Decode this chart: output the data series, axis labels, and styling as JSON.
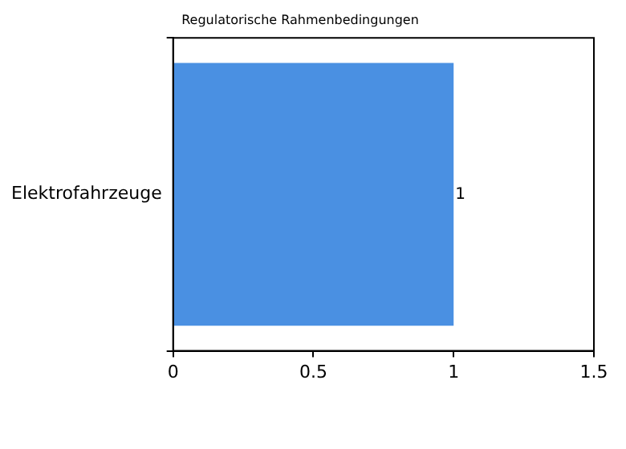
{
  "chart_data": {
    "type": "bar",
    "orientation": "horizontal",
    "title": "Regulatorische Rahmenbedingungen",
    "categories": [
      "Elektrofahrzeuge"
    ],
    "values": [
      1
    ],
    "color": "#4a90e2",
    "xlim": [
      0,
      1.5
    ],
    "xticks": [
      0,
      0.5,
      1,
      1.5
    ],
    "grid": false,
    "legend": false,
    "data_labels": true
  }
}
